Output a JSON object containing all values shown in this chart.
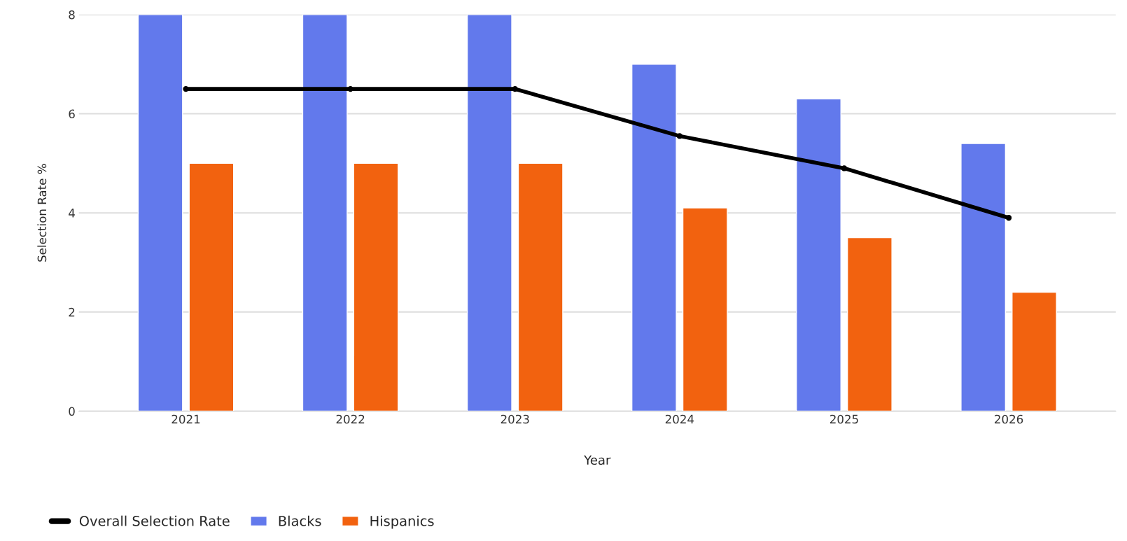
{
  "chart_data": {
    "type": "bar",
    "xlabel": "Year",
    "ylabel": "Selection Rate %",
    "categories": [
      "2021",
      "2022",
      "2023",
      "2024",
      "2025",
      "2026"
    ],
    "series": [
      {
        "name": "Overall Selection Rate",
        "type": "line",
        "color": "#000000",
        "values": [
          6.5,
          6.5,
          6.5,
          5.55,
          4.9,
          3.9
        ]
      },
      {
        "name": "Blacks",
        "color": "#6279ec",
        "values": [
          8,
          8,
          8,
          7,
          6.3,
          5.4
        ]
      },
      {
        "name": "Hispanics",
        "color": "#f2620f",
        "values": [
          5,
          5,
          5,
          4.1,
          3.5,
          2.4
        ]
      }
    ],
    "ylim": [
      0,
      8
    ],
    "yticks": [
      0,
      2,
      4,
      6,
      8
    ],
    "grid": "y",
    "legend": "bottom left",
    "marker": "circle",
    "line_style": "solid"
  }
}
